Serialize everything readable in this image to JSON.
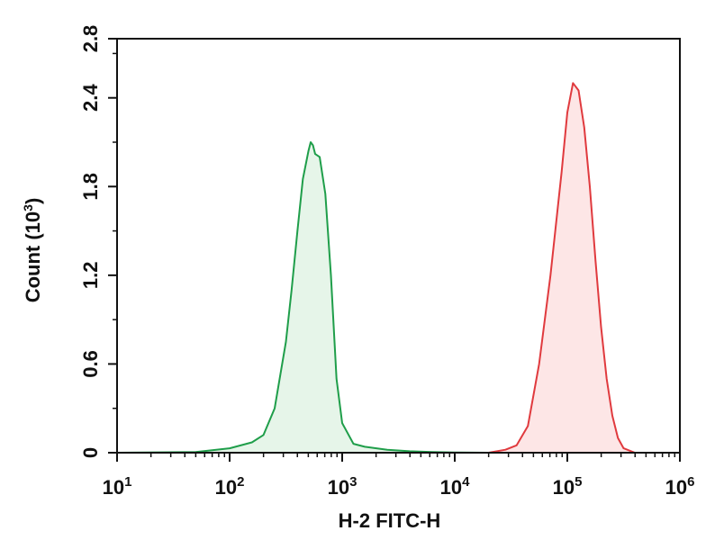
{
  "chart_data": {
    "type": "area",
    "title": "",
    "xlabel": "H-2 FITC-H",
    "ylabel": "Count (10",
    "ylabel_sup": "3",
    "ylabel_close": ")",
    "x_scale": "log10",
    "xlim": [
      10,
      1000000
    ],
    "ylim": [
      0,
      2.8
    ],
    "x_ticks": [
      {
        "value": 10,
        "base": "10",
        "exp": "1"
      },
      {
        "value": 100,
        "base": "10",
        "exp": "2"
      },
      {
        "value": 1000,
        "base": "10",
        "exp": "3"
      },
      {
        "value": 10000,
        "base": "10",
        "exp": "4"
      },
      {
        "value": 100000,
        "base": "10",
        "exp": "5"
      },
      {
        "value": 1000000,
        "base": "10",
        "exp": "6"
      }
    ],
    "y_ticks": [
      {
        "value": 0,
        "label": "0"
      },
      {
        "value": 0.6,
        "label": "0.6"
      },
      {
        "value": 1.2,
        "label": "1.2"
      },
      {
        "value": 1.8,
        "label": "1.8"
      },
      {
        "value": 2.4,
        "label": "2.4"
      },
      {
        "value": 2.8,
        "label": "2.8"
      }
    ],
    "grid": false,
    "series": [
      {
        "color": "#1f9e4a",
        "fill": "#e6f5e9",
        "x": [
          10,
          50,
          100,
          158,
          200,
          251,
          316,
          355,
          400,
          447,
          501,
          525,
          550,
          575,
          631,
          708,
          794,
          891,
          1000,
          1259,
          1585,
          2512,
          3981,
          6310,
          10000,
          20000
        ],
        "y": [
          0,
          0.005,
          0.03,
          0.07,
          0.12,
          0.3,
          0.75,
          1.1,
          1.5,
          1.85,
          2.04,
          2.1,
          2.08,
          2.02,
          2.0,
          1.75,
          1.2,
          0.5,
          0.2,
          0.06,
          0.04,
          0.02,
          0.01,
          0.005,
          0.002,
          0
        ]
      },
      {
        "color": "#e03a3e",
        "fill": "#fde6e6",
        "x": [
          20000,
          28184,
          35481,
          44668,
          56234,
          70795,
          89125,
          100000,
          112202,
          125893,
          141254,
          158489,
          177828,
          199526,
          223872,
          251189,
          281838,
          316228,
          398107
        ],
        "y": [
          0,
          0.02,
          0.05,
          0.18,
          0.6,
          1.2,
          1.9,
          2.3,
          2.5,
          2.45,
          2.2,
          1.8,
          1.3,
          0.85,
          0.5,
          0.25,
          0.1,
          0.03,
          0
        ]
      }
    ]
  }
}
